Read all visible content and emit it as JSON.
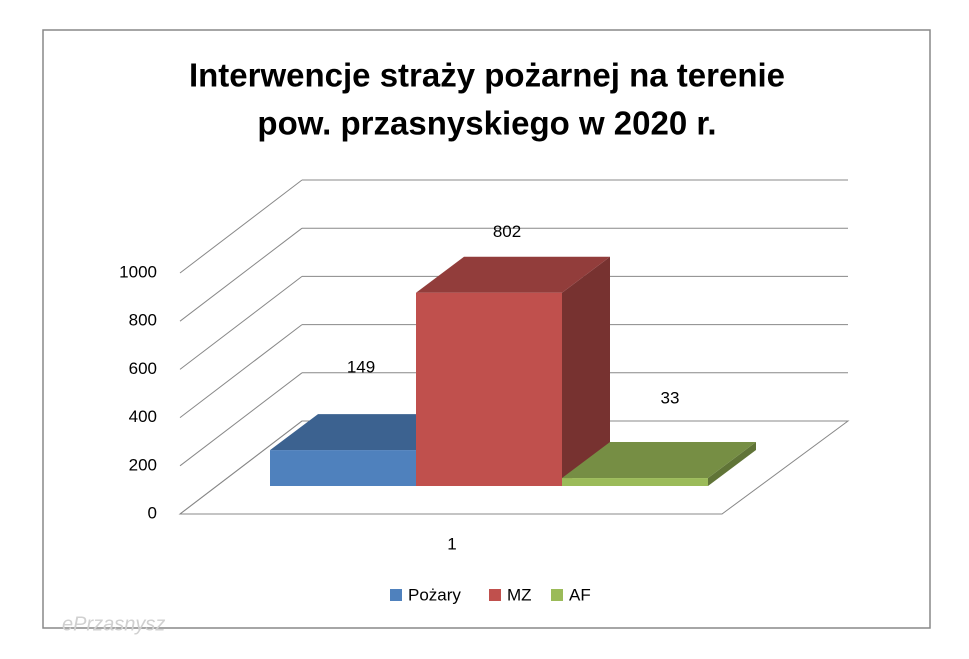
{
  "chart_data": {
    "type": "bar3d",
    "title": "Interwencje straży pożarnej na terenie",
    "subtitle": "pow. przasnyskiego w 2020 r.",
    "categories": [
      "1"
    ],
    "series": [
      {
        "name": "Pożary",
        "color": "#4f81bd",
        "values": [
          149
        ]
      },
      {
        "name": "MZ",
        "color": "#c0504d",
        "values": [
          802
        ]
      },
      {
        "name": "AF",
        "color": "#9bbb59",
        "values": [
          33
        ]
      }
    ],
    "ylim": [
      0,
      1000
    ],
    "yticks": [
      0,
      200,
      400,
      600,
      800,
      1000
    ],
    "grid": true,
    "legend": "bottom",
    "watermark": "ePrzasnysz"
  }
}
